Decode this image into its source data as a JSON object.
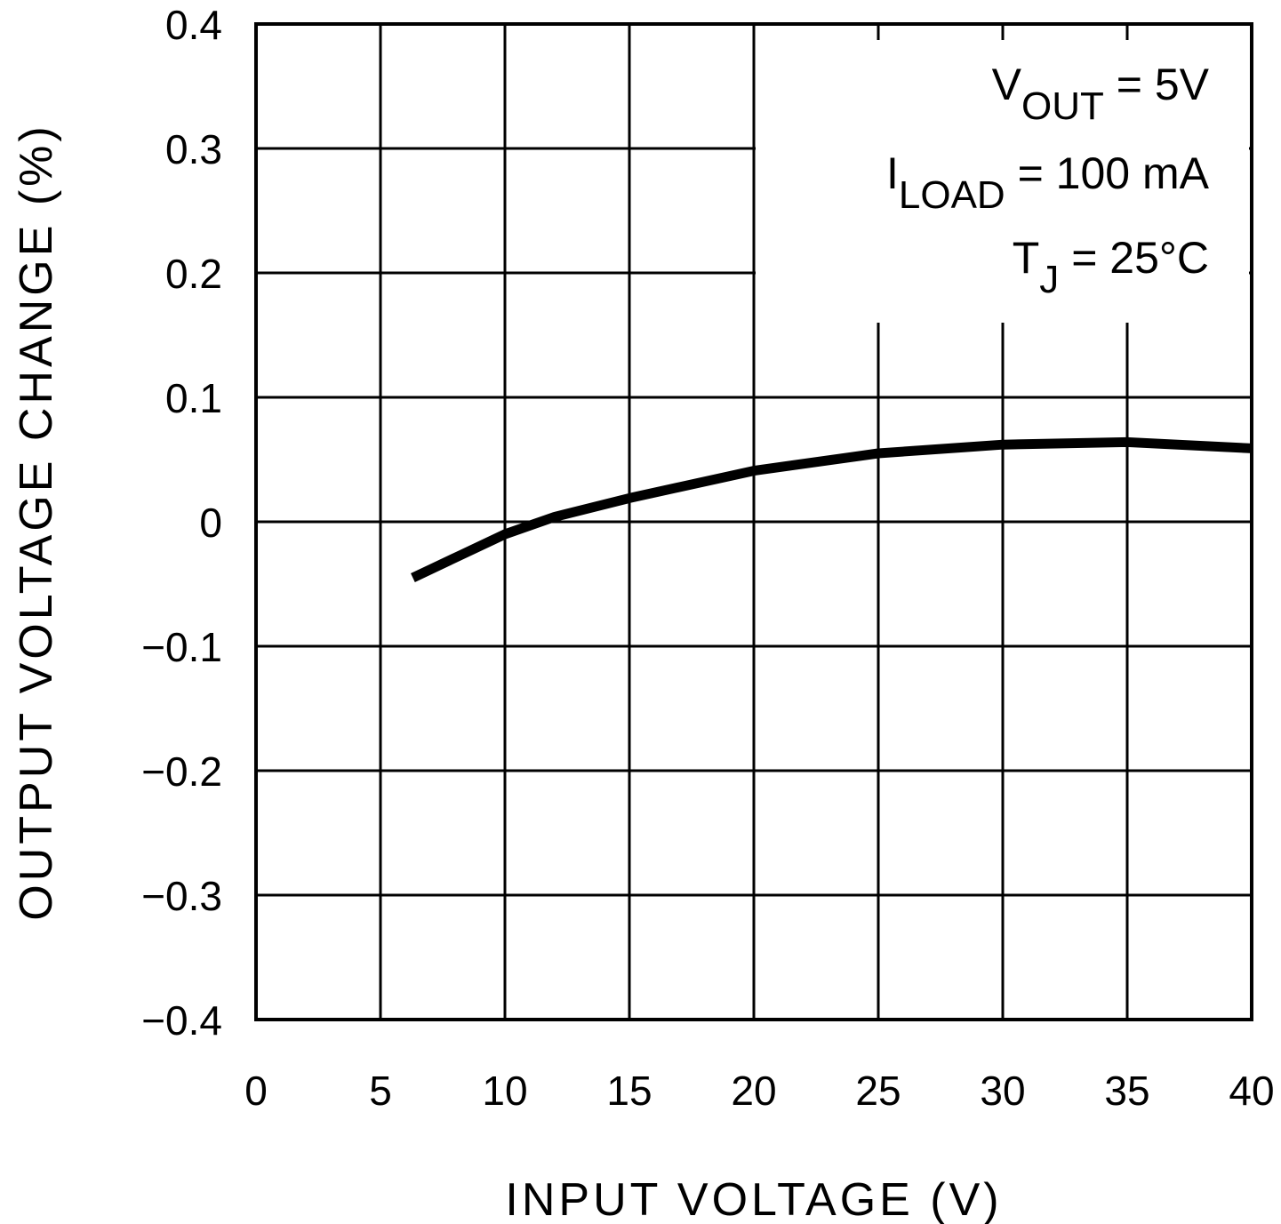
{
  "chart_data": {
    "type": "line",
    "title": "",
    "xlabel": "INPUT VOLTAGE (V)",
    "ylabel": "OUTPUT VOLTAGE CHANGE (%)",
    "xlim": [
      0,
      40
    ],
    "ylim": [
      -0.4,
      0.4
    ],
    "xticks": [
      0,
      5,
      10,
      15,
      20,
      25,
      30,
      35,
      40
    ],
    "xtick_labels": [
      "0",
      "5",
      "10",
      "15",
      "20",
      "25",
      "30",
      "35",
      "40"
    ],
    "yticks": [
      0.4,
      0.3,
      0.2,
      0.1,
      0,
      -0.1,
      -0.2,
      -0.3,
      -0.4
    ],
    "ytick_labels": [
      "0.4",
      "0.3",
      "0.2",
      "0.1",
      "0",
      "−0.1",
      "−0.2",
      "−0.3",
      "−0.4"
    ],
    "grid": true,
    "series": [
      {
        "name": "output-voltage-change",
        "color": "#000000",
        "x": [
          6.3,
          8.2,
          10,
          12,
          15,
          20,
          25,
          30,
          35,
          40
        ],
        "y": [
          -0.045,
          -0.027,
          -0.01,
          0.004,
          0.019,
          0.041,
          0.055,
          0.062,
          0.064,
          0.059
        ]
      }
    ],
    "annotations": [
      {
        "main": "V",
        "sub": "OUT",
        "rest": " =  5V"
      },
      {
        "main": "I",
        "sub": "LOAD",
        "rest": " =  100 mA"
      },
      {
        "main": "T",
        "sub": "J",
        "rest": " =  25°C"
      }
    ],
    "annotation_placement": "top-right"
  }
}
